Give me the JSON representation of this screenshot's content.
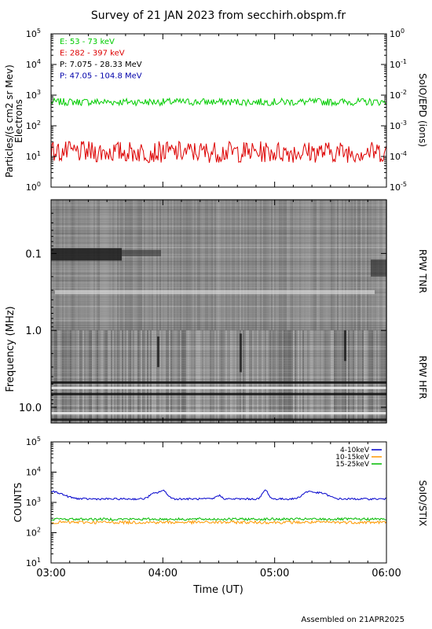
{
  "title": "Survey of 21 JAN 2023 from secchirh.obspm.fr",
  "footer": "Assembled on 21APR2025",
  "chart_data": [
    {
      "type": "line",
      "panel": "epd",
      "ylabel": "Particles/(s cm2 sr Mev)",
      "ylabel2": "Electrons",
      "right_label": "SoIO/EPD (ions)",
      "y_log": true,
      "ylim": [
        1,
        100000
      ],
      "y_ticks": [
        {
          "exp": "0",
          "v": 1
        },
        {
          "exp": "1",
          "v": 10
        },
        {
          "exp": "2",
          "v": 100
        },
        {
          "exp": "3",
          "v": 1000
        },
        {
          "exp": "4",
          "v": 10000
        },
        {
          "exp": "5",
          "v": 100000
        }
      ],
      "y2_ticks": [
        {
          "exp": "0",
          "v": 1
        },
        {
          "exp": "-1",
          "v": 0.1
        },
        {
          "exp": "-2",
          "v": 0.01
        },
        {
          "exp": "-3",
          "v": 0.001
        },
        {
          "exp": "-4",
          "v": 0.0001
        },
        {
          "exp": "-5",
          "v": 1e-05
        }
      ],
      "legend": [
        {
          "text": "E: 53 - 73 keV",
          "color": "#00cc00"
        },
        {
          "text": "E: 282 - 397 keV",
          "color": "#dd0000"
        },
        {
          "text": "P: 7.075 - 28.33 MeV",
          "color": "#000000"
        },
        {
          "text": "P: 47.05 - 104.8 MeV",
          "color": "#0000aa"
        }
      ],
      "series": [
        {
          "name": "E: 53 - 73 keV",
          "color": "#00cc00",
          "level": 600,
          "noise_dex": 0.12
        },
        {
          "name": "E: 282 - 397 keV",
          "color": "#dd0000",
          "level": 14,
          "noise_dex": 0.35
        }
      ]
    },
    {
      "type": "heatmap",
      "panel": "rpw",
      "ylabel": "Frequency (MHz)",
      "y_log": true,
      "ylim": [
        0.02,
        16
      ],
      "y_ticks": [
        {
          "label": "0.1",
          "v": 0.1
        },
        {
          "label": "1.0",
          "v": 1.0
        },
        {
          "label": "10.0",
          "v": 10.0
        }
      ],
      "right_labels": [
        "RPW TNR",
        "RPW HFR"
      ]
    },
    {
      "type": "line",
      "panel": "stix",
      "ylabel": "COUNTS",
      "right_label": "SoIO/STIX",
      "xlabel": "Time (UT)",
      "y_log": true,
      "ylim": [
        10,
        100000
      ],
      "y_ticks": [
        {
          "exp": "1",
          "v": 10
        },
        {
          "exp": "2",
          "v": 100
        },
        {
          "exp": "3",
          "v": 1000
        },
        {
          "exp": "4",
          "v": 10000
        },
        {
          "exp": "5",
          "v": 100000
        }
      ],
      "x_ticks": [
        {
          "label": "03:00",
          "t": 0
        },
        {
          "label": "04:00",
          "t": 60
        },
        {
          "label": "05:00",
          "t": 120
        },
        {
          "label": "06:00",
          "t": 180
        }
      ],
      "xlim": [
        0,
        180
      ],
      "series": [
        {
          "name": "4-10keV",
          "color": "#0000cc",
          "level": 1300,
          "noise_dex": 0.03,
          "peaks": [
            [
              0,
              2300,
              8
            ],
            [
              55,
              1900,
              3
            ],
            [
              60,
              2400,
              3
            ],
            [
              90,
              1700,
              2
            ],
            [
              115,
              2500,
              2
            ],
            [
              138,
              2200,
              4
            ],
            [
              145,
              2000,
              5
            ]
          ]
        },
        {
          "name": "10-15keV",
          "color": "#ff9900",
          "level": 220,
          "noise_dex": 0.05,
          "peaks": []
        },
        {
          "name": "15-25keV",
          "color": "#00bb00",
          "level": 280,
          "noise_dex": 0.04,
          "peaks": []
        }
      ]
    }
  ]
}
